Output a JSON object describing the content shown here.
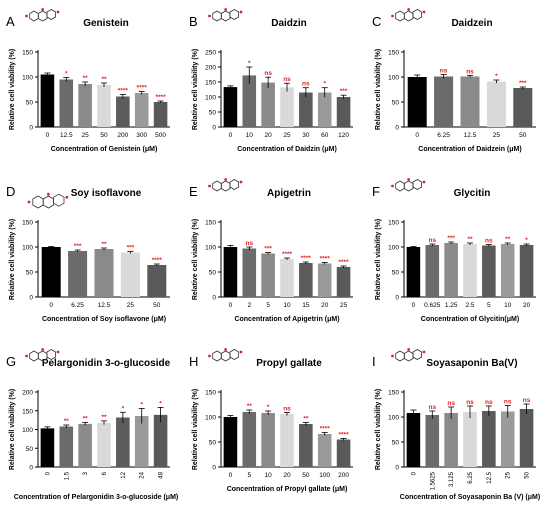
{
  "chart_data": [
    {
      "type": "bar",
      "panel_letter": "A",
      "title": "Genistein",
      "xlabel": "Concentration of Genistein (μM)",
      "ylabel": "Relative cell viability (%)",
      "ylim": [
        0,
        150
      ],
      "yticks": [
        0,
        50,
        100,
        150
      ],
      "categories": [
        "0",
        "12.5",
        "25",
        "50",
        "200",
        "300",
        "500"
      ],
      "values": [
        105,
        95,
        86,
        84,
        61,
        68,
        50
      ],
      "errors": [
        3,
        4,
        4,
        4,
        4,
        3,
        2
      ],
      "significance": [
        "",
        "*",
        "**",
        "**",
        "****",
        "****",
        "****"
      ],
      "bar_colors": [
        "#000000",
        "#6b6b6b",
        "#8a8a8a",
        "#d9d9d9",
        "#5c5c5c",
        "#9a9a9a",
        "#595959"
      ]
    },
    {
      "type": "bar",
      "panel_letter": "B",
      "title": "Daidzin",
      "xlabel": "Concentration of Daidzin (μM)",
      "ylabel": "Relative cell viability (%)",
      "ylim": [
        0,
        250
      ],
      "yticks": [
        0,
        50,
        100,
        150,
        200,
        250
      ],
      "categories": [
        "0",
        "10",
        "20",
        "25",
        "30",
        "60",
        "120"
      ],
      "values": [
        133,
        172,
        148,
        132,
        115,
        115,
        100
      ],
      "errors": [
        4,
        28,
        18,
        14,
        16,
        16,
        6
      ],
      "significance": [
        "",
        "*",
        "ns",
        "ns",
        "ns",
        "*",
        "***"
      ],
      "bar_colors": [
        "#000000",
        "#6b6b6b",
        "#8a8a8a",
        "#d9d9d9",
        "#5c5c5c",
        "#9a9a9a",
        "#595959"
      ]
    },
    {
      "type": "bar",
      "panel_letter": "C",
      "title": "Daidzein",
      "xlabel": "Concentration of Daidzein (μM)",
      "ylabel": "Relative cell viability (%)",
      "ylim": [
        0,
        150
      ],
      "yticks": [
        0,
        50,
        100,
        150
      ],
      "categories": [
        "0",
        "6.25",
        "12.5",
        "25",
        "50"
      ],
      "values": [
        100,
        101,
        101,
        91,
        78
      ],
      "errors": [
        4,
        4,
        2,
        3,
        2
      ],
      "significance": [
        "",
        "ns",
        "ns",
        "*",
        "***"
      ],
      "bar_colors": [
        "#000000",
        "#6b6b6b",
        "#8a8a8a",
        "#d9d9d9",
        "#595959"
      ]
    },
    {
      "type": "bar",
      "panel_letter": "D",
      "title": "Soy isoflavone",
      "xlabel": "Concentration of Soy isoflavone (μM)",
      "ylabel": "Relative cell viability (%)",
      "ylim": [
        0,
        150
      ],
      "yticks": [
        0,
        50,
        100,
        150
      ],
      "categories": [
        "0",
        "6.25",
        "12.5",
        "25",
        "50"
      ],
      "values": [
        100,
        92,
        96,
        89,
        64
      ],
      "errors": [
        1,
        2,
        2,
        2,
        2
      ],
      "significance": [
        "",
        "***",
        "**",
        "***",
        "****"
      ],
      "bar_colors": [
        "#000000",
        "#6b6b6b",
        "#8a8a8a",
        "#d9d9d9",
        "#595959"
      ]
    },
    {
      "type": "bar",
      "panel_letter": "E",
      "title": "Apigetrin",
      "xlabel": "Concentration of Apigetrin (μM)",
      "ylabel": "Relative cell viability (%)",
      "ylim": [
        0,
        150
      ],
      "yticks": [
        0,
        50,
        100,
        150
      ],
      "categories": [
        "0",
        "2",
        "5",
        "10",
        "15",
        "20",
        "25"
      ],
      "values": [
        100,
        97,
        87,
        76,
        68,
        67,
        60
      ],
      "errors": [
        3,
        3,
        2,
        2,
        2,
        2,
        2
      ],
      "significance": [
        "",
        "ns",
        "***",
        "****",
        "****",
        "****",
        "****"
      ],
      "bar_colors": [
        "#000000",
        "#6b6b6b",
        "#8a8a8a",
        "#d9d9d9",
        "#5c5c5c",
        "#9a9a9a",
        "#595959"
      ]
    },
    {
      "type": "bar",
      "panel_letter": "F",
      "title": "Glycitin",
      "xlabel": "Concentration of Glycitin(μM)",
      "ylabel": "Relative cell viability (%)",
      "ylim": [
        0,
        150
      ],
      "yticks": [
        0,
        50,
        100,
        150
      ],
      "categories": [
        "0",
        "0.625",
        "1.25",
        "2.5",
        "5",
        "10",
        "20"
      ],
      "values": [
        100,
        104,
        108,
        106,
        103,
        106,
        104
      ],
      "errors": [
        1,
        2,
        2,
        2,
        2,
        2,
        2
      ],
      "significance": [
        "",
        "ns",
        "***",
        "**",
        "ns",
        "**",
        "*"
      ],
      "bar_colors": [
        "#000000",
        "#6b6b6b",
        "#8a8a8a",
        "#d9d9d9",
        "#5c5c5c",
        "#9a9a9a",
        "#595959"
      ]
    },
    {
      "type": "bar",
      "panel_letter": "G",
      "title": "Pelargonidin 3-o-glucoside",
      "xlabel": "Concentration of Pelargonidin 3-o-glucoside (μM)",
      "ylabel": "Relative cell viability (%)",
      "ylim": [
        0,
        200
      ],
      "yticks": [
        0,
        50,
        100,
        150,
        200
      ],
      "categories": [
        "0",
        "1.5",
        "3",
        "6",
        "12",
        "24",
        "48"
      ],
      "values": [
        103,
        108,
        115,
        118,
        132,
        136,
        139
      ],
      "errors": [
        4,
        4,
        4,
        5,
        14,
        20,
        20
      ],
      "significance": [
        "",
        "**",
        "**",
        "**",
        "*",
        "*",
        "*"
      ],
      "bar_colors": [
        "#000000",
        "#6b6b6b",
        "#8a8a8a",
        "#d9d9d9",
        "#5c5c5c",
        "#9a9a9a",
        "#595959"
      ]
    },
    {
      "type": "bar",
      "panel_letter": "H",
      "title": "Propyl gallate",
      "xlabel": "Concentration of Propyl gallate (μM)",
      "ylabel": "Relative cell viability (%)",
      "ylim": [
        0,
        150
      ],
      "yticks": [
        0,
        50,
        100,
        150
      ],
      "categories": [
        "0",
        "5",
        "10",
        "20",
        "50",
        "100",
        "200"
      ],
      "values": [
        100,
        110,
        108,
        106,
        86,
        66,
        55
      ],
      "errors": [
        3,
        4,
        4,
        3,
        3,
        3,
        2
      ],
      "significance": [
        "",
        "**",
        "*",
        "ns",
        "**",
        "****",
        "****"
      ],
      "bar_colors": [
        "#000000",
        "#6b6b6b",
        "#8a8a8a",
        "#d9d9d9",
        "#5c5c5c",
        "#9a9a9a",
        "#595959"
      ]
    },
    {
      "type": "bar",
      "panel_letter": "I",
      "title": "Soyasaponin Ba(V)",
      "xlabel": "Concentration of Soyasaponin Ba (V) (μM)",
      "ylabel": "Relative cell viability (%)",
      "ylim": [
        0,
        150
      ],
      "yticks": [
        0,
        50,
        100,
        150
      ],
      "categories": [
        "0",
        "1.5625",
        "3.125",
        "6.25",
        "12.5",
        "25",
        "50"
      ],
      "values": [
        108,
        104,
        108,
        110,
        112,
        111,
        116
      ],
      "errors": [
        6,
        8,
        12,
        12,
        10,
        12,
        10
      ],
      "significance": [
        "",
        "ns",
        "ns",
        "ns",
        "ns",
        "ns",
        "ns"
      ],
      "bar_colors": [
        "#000000",
        "#6b6b6b",
        "#8a8a8a",
        "#d9d9d9",
        "#5c5c5c",
        "#9a9a9a",
        "#595959"
      ]
    }
  ],
  "style": {
    "significance_color": "#e02020",
    "axis_color": "#000000",
    "text_color": "#000000",
    "molecule_color": "#c03030"
  }
}
